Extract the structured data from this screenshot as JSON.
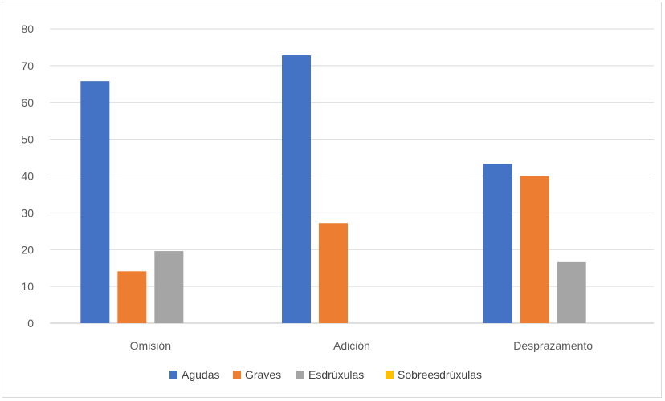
{
  "chart_data": {
    "type": "bar",
    "categories": [
      "Omisión",
      "Adición",
      "Desprazamento"
    ],
    "series": [
      {
        "name": "Agudas",
        "color": "#4472c4",
        "values": [
          65.8,
          72.8,
          43.3
        ]
      },
      {
        "name": "Graves",
        "color": "#ed7d31",
        "values": [
          14.1,
          27.2,
          40.0
        ]
      },
      {
        "name": "Esdrúxulas",
        "color": "#a5a5a5",
        "values": [
          19.6,
          0,
          16.6
        ]
      },
      {
        "name": "Sobreesdrúxulas",
        "color": "#ffc000",
        "values": [
          0,
          0,
          0
        ]
      }
    ],
    "y_ticks": [
      "0",
      "10",
      "20",
      "30",
      "40",
      "50",
      "60",
      "70",
      "80"
    ],
    "ylim": [
      0,
      80
    ],
    "grid": true,
    "legend_position": "bottom",
    "title": "",
    "xlabel": "",
    "ylabel": ""
  }
}
